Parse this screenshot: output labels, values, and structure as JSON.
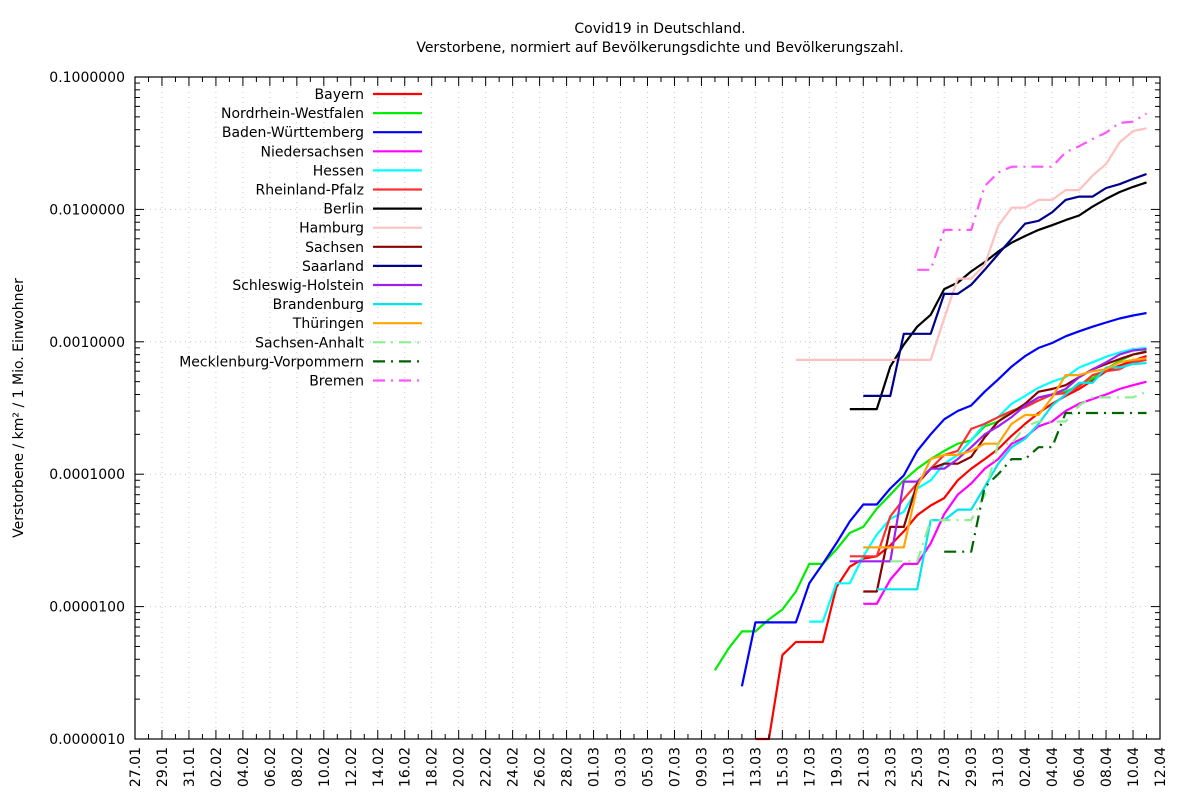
{
  "chart_data": {
    "type": "line",
    "title": "Covid19 in Deutschland.",
    "subtitle": "Verstorbene, normiert auf Bevölkerungsdichte und Bevölkerungszahl.",
    "xlabel": "",
    "ylabel": "Verstorbene / km² / 1 Mio. Einwohner",
    "yscale": "log",
    "ylim": [
      1e-06,
      0.1
    ],
    "y_tick_labels": [
      "0.1000000",
      "0.0100000",
      "0.0010000",
      "0.0001000",
      "0.0000100",
      "0.0000010"
    ],
    "y_tick_values": [
      0.1,
      0.01,
      0.001,
      0.0001,
      1e-05,
      1e-06
    ],
    "x_start_date": "2020-01-27",
    "x_range_days": [
      0,
      76
    ],
    "x_tick_labels": [
      "27.01",
      "29.01",
      "31.01",
      "02.02",
      "04.02",
      "06.02",
      "08.02",
      "10.02",
      "12.02",
      "14.02",
      "16.02",
      "18.02",
      "20.02",
      "22.02",
      "24.02",
      "26.02",
      "28.02",
      "01.03",
      "03.03",
      "05.03",
      "07.03",
      "09.03",
      "11.03",
      "13.03",
      "15.03",
      "17.03",
      "19.03",
      "21.03",
      "23.03",
      "25.03",
      "27.03",
      "29.03",
      "31.03",
      "02.04",
      "04.04",
      "06.04",
      "08.04",
      "10.04",
      "12.04"
    ],
    "grid": true,
    "legend_position": "top-left",
    "series": [
      {
        "name": "Bayern",
        "color": "#ff0000",
        "dash": "solid",
        "x": [
          46,
          47,
          48,
          49,
          50,
          51,
          52,
          53,
          54,
          55,
          56,
          57,
          58,
          59,
          60,
          61,
          62,
          63,
          64,
          65,
          66,
          67,
          68,
          69,
          70,
          71,
          72,
          73,
          74,
          75
        ],
        "y": [
          1e-06,
          1e-06,
          4.3e-06,
          5.4e-06,
          5.4e-06,
          5.4e-06,
          1.4e-05,
          2e-05,
          2.3e-05,
          2.4e-05,
          2.9e-05,
          3.7e-05,
          4.9e-05,
          5.8e-05,
          6.6e-05,
          9e-05,
          0.00011,
          0.00013,
          0.000155,
          0.000195,
          0.00024,
          0.00029,
          0.00034,
          0.00039,
          0.00044,
          0.00051,
          0.0006,
          0.00066,
          0.00072,
          0.00078
        ]
      },
      {
        "name": "Nordrhein-Westfalen",
        "color": "#00ee00",
        "dash": "solid",
        "x": [
          43,
          44,
          45,
          46,
          47,
          48,
          49,
          50,
          51,
          52,
          53,
          54,
          55,
          56,
          57,
          58,
          59,
          60,
          61,
          62,
          63,
          64,
          65,
          66,
          67,
          68,
          69,
          70,
          71,
          72,
          73,
          74,
          75
        ],
        "y": [
          3.3e-06,
          4.8e-06,
          6.5e-06,
          6.5e-06,
          8e-06,
          9.5e-06,
          1.3e-05,
          2.1e-05,
          2.1e-05,
          2.7e-05,
          3.6e-05,
          4e-05,
          5.5e-05,
          7e-05,
          9e-05,
          0.00011,
          0.00013,
          0.00015,
          0.00017,
          0.00018,
          0.00023,
          0.00025,
          0.0003,
          0.00033,
          0.00036,
          0.0004,
          0.00042,
          0.00047,
          0.00053,
          0.00062,
          0.00072,
          0.0008,
          0.00085
        ]
      },
      {
        "name": "Baden-Württemberg",
        "color": "#0000ff",
        "dash": "solid",
        "x": [
          45,
          46,
          47,
          48,
          49,
          50,
          51,
          52,
          53,
          54,
          55,
          56,
          57,
          58,
          59,
          60,
          61,
          62,
          63,
          64,
          65,
          66,
          67,
          68,
          69,
          70,
          71,
          72,
          73,
          74,
          75
        ],
        "y": [
          2.5e-06,
          7.6e-06,
          7.6e-06,
          7.6e-06,
          7.6e-06,
          1.5e-05,
          2.1e-05,
          3e-05,
          4.4e-05,
          5.9e-05,
          5.9e-05,
          7.8e-05,
          9.8e-05,
          0.00015,
          0.0002,
          0.00026,
          0.0003,
          0.00033,
          0.00042,
          0.00052,
          0.00065,
          0.00078,
          0.0009,
          0.00098,
          0.0011,
          0.0012,
          0.0013,
          0.0014,
          0.0015,
          0.00158,
          0.00165
        ]
      },
      {
        "name": "Niedersachsen",
        "color": "#ff00ff",
        "dash": "solid",
        "x": [
          54,
          55,
          56,
          57,
          58,
          59,
          60,
          61,
          62,
          63,
          64,
          65,
          66,
          67,
          68,
          69,
          70,
          71,
          72,
          73,
          74,
          75
        ],
        "y": [
          1.05e-05,
          1.05e-05,
          1.6e-05,
          2.1e-05,
          2.1e-05,
          3e-05,
          5e-05,
          7e-05,
          8.5e-05,
          0.00011,
          0.00013,
          0.00017,
          0.00019,
          0.00023,
          0.00025,
          0.0003,
          0.00034,
          0.00037,
          0.0004,
          0.00044,
          0.00047,
          0.0005
        ]
      },
      {
        "name": "Hessen",
        "color": "#00ffff",
        "dash": "solid",
        "x": [
          50,
          51,
          52,
          53,
          54,
          55,
          56,
          57,
          58,
          59,
          60,
          61,
          62,
          63,
          64,
          65,
          66,
          67,
          68,
          69,
          70,
          71,
          72,
          73,
          74,
          75
        ],
        "y": [
          7.7e-06,
          7.7e-06,
          1.5e-05,
          1.5e-05,
          2.4e-05,
          3.5e-05,
          4.6e-05,
          5.2e-05,
          7.8e-05,
          9e-05,
          0.00012,
          0.00014,
          0.00018,
          0.00024,
          0.00027,
          0.00034,
          0.00039,
          0.00045,
          0.0005,
          0.00054,
          0.00064,
          0.0007,
          0.00077,
          0.00083,
          0.00088,
          0.0009
        ]
      },
      {
        "name": "Rheinland-Pfalz",
        "color": "#ff3030",
        "dash": "solid",
        "x": [
          53,
          54,
          55,
          56,
          57,
          58,
          59,
          60,
          61,
          62,
          63,
          64,
          65,
          66,
          67,
          68,
          69,
          70,
          71,
          72,
          73,
          74,
          75
        ],
        "y": [
          2.4e-05,
          2.4e-05,
          2.4e-05,
          4.8e-05,
          6.5e-05,
          8.5e-05,
          0.00011,
          0.00014,
          0.00015,
          0.00022,
          0.00024,
          0.00027,
          0.0003,
          0.00032,
          0.00036,
          0.0004,
          0.00041,
          0.00046,
          0.00056,
          0.0006,
          0.00062,
          0.0007,
          0.00073
        ]
      },
      {
        "name": "Berlin",
        "color": "#000000",
        "dash": "solid",
        "x": [
          53,
          54,
          55,
          56,
          57,
          58,
          59,
          60,
          61,
          62,
          63,
          64,
          65,
          66,
          67,
          68,
          69,
          70,
          71,
          72,
          73,
          74,
          75
        ],
        "y": [
          0.00031,
          0.00031,
          0.00031,
          0.00065,
          0.00095,
          0.0013,
          0.0016,
          0.0025,
          0.0028,
          0.0034,
          0.004,
          0.0048,
          0.0056,
          0.0063,
          0.007,
          0.0076,
          0.0083,
          0.009,
          0.0105,
          0.012,
          0.0135,
          0.0148,
          0.016
        ]
      },
      {
        "name": "Hamburg",
        "color": "#ffc0c0",
        "dash": "solid",
        "x": [
          49,
          50,
          51,
          52,
          53,
          54,
          55,
          56,
          57,
          58,
          59,
          60,
          61,
          62,
          63,
          64,
          65,
          66,
          67,
          68,
          69,
          70,
          71,
          72,
          73,
          74,
          75
        ],
        "y": [
          0.00073,
          0.00073,
          0.00073,
          0.00073,
          0.00073,
          0.00073,
          0.00073,
          0.00073,
          0.00073,
          0.00073,
          0.00073,
          0.0015,
          0.003,
          0.003,
          0.0038,
          0.0075,
          0.0103,
          0.0103,
          0.0118,
          0.0118,
          0.014,
          0.014,
          0.018,
          0.022,
          0.032,
          0.039,
          0.041
        ]
      },
      {
        "name": "Sachsen",
        "color": "#8b0000",
        "dash": "solid",
        "x": [
          54,
          55,
          56,
          57,
          58,
          59,
          60,
          61,
          62,
          63,
          64,
          65,
          66,
          67,
          68,
          69,
          70,
          71,
          72,
          73,
          74,
          75
        ],
        "y": [
          1.3e-05,
          1.3e-05,
          4e-05,
          4e-05,
          8.5e-05,
          0.00011,
          0.00012,
          0.00012,
          0.000135,
          0.00019,
          0.00025,
          0.00029,
          0.00034,
          0.00042,
          0.00044,
          0.00047,
          0.00054,
          0.00062,
          0.00068,
          0.00074,
          0.0008,
          0.00084
        ]
      },
      {
        "name": "Saarland",
        "color": "#00008b",
        "dash": "solid",
        "x": [
          54,
          55,
          56,
          57,
          58,
          59,
          60,
          61,
          62,
          63,
          64,
          65,
          66,
          67,
          68,
          69,
          70,
          71,
          72,
          73,
          74,
          75
        ],
        "y": [
          0.00039,
          0.00039,
          0.00039,
          0.00115,
          0.00115,
          0.00115,
          0.0023,
          0.0023,
          0.0027,
          0.0035,
          0.0046,
          0.006,
          0.0078,
          0.0082,
          0.0095,
          0.0118,
          0.0125,
          0.0125,
          0.0145,
          0.0155,
          0.017,
          0.0185
        ]
      },
      {
        "name": "Schleswig-Holstein",
        "color": "#a020f0",
        "dash": "solid",
        "x": [
          53,
          54,
          55,
          56,
          57,
          58,
          59,
          60,
          61,
          62,
          63,
          64,
          65,
          66,
          67,
          68,
          69,
          70,
          71,
          72,
          73,
          74,
          75
        ],
        "y": [
          2.2e-05,
          2.2e-05,
          2.2e-05,
          2.2e-05,
          8.8e-05,
          8.8e-05,
          0.00011,
          0.00011,
          0.00013,
          0.00016,
          0.0002,
          0.00023,
          0.00027,
          0.00033,
          0.00038,
          0.0004,
          0.00044,
          0.00054,
          0.00062,
          0.0007,
          0.0008,
          0.00086,
          0.00088
        ]
      },
      {
        "name": "Brandenburg",
        "color": "#00e5ee",
        "dash": "solid",
        "x": [
          55,
          56,
          57,
          58,
          59,
          60,
          61,
          62,
          63,
          64,
          65,
          66,
          67,
          68,
          69,
          70,
          71,
          72,
          73,
          74,
          75
        ],
        "y": [
          1.35e-05,
          1.35e-05,
          1.35e-05,
          1.35e-05,
          4.5e-05,
          4.5e-05,
          5.4e-05,
          5.4e-05,
          8e-05,
          0.00012,
          0.00016,
          0.000185,
          0.00024,
          0.00033,
          0.0004,
          0.00049,
          0.00049,
          0.00064,
          0.00064,
          0.00068,
          0.00069
        ]
      },
      {
        "name": "Thüringen",
        "color": "#ffa500",
        "dash": "solid",
        "x": [
          54,
          55,
          56,
          57,
          58,
          59,
          60,
          61,
          62,
          63,
          64,
          65,
          66,
          67,
          68,
          69,
          70,
          71,
          72,
          73,
          74,
          75
        ],
        "y": [
          2.8e-05,
          2.8e-05,
          2.8e-05,
          2.8e-05,
          8e-05,
          0.00013,
          0.00014,
          0.00014,
          0.00015,
          0.00017,
          0.00017,
          0.00024,
          0.00028,
          0.00028,
          0.00038,
          0.00056,
          0.00056,
          0.0006,
          0.00062,
          0.0007,
          0.00073,
          0.00075
        ]
      },
      {
        "name": "Sachsen-Anhalt",
        "color": "#90ee90",
        "dash": "dash-dot",
        "x": [
          56,
          57,
          58,
          59,
          60,
          61,
          62,
          63,
          64,
          65,
          66,
          67,
          68,
          69,
          70,
          71,
          72,
          73,
          74,
          75
        ],
        "y": [
          2.2e-05,
          2.2e-05,
          2.2e-05,
          4.5e-05,
          4.5e-05,
          4.5e-05,
          4.5e-05,
          7e-05,
          0.00017,
          0.00017,
          0.00023,
          0.00025,
          0.00025,
          0.00025,
          0.00033,
          0.00038,
          0.00038,
          0.00038,
          0.00038,
          0.00042
        ]
      },
      {
        "name": "Mecklenburg-Vorpommern",
        "color": "#006400",
        "dash": "dash-dot",
        "x": [
          60,
          61,
          62,
          63,
          64,
          65,
          66,
          67,
          68,
          69,
          70,
          71,
          72,
          73,
          74,
          75
        ],
        "y": [
          2.6e-05,
          2.6e-05,
          2.6e-05,
          8e-05,
          0.0001,
          0.00013,
          0.00013,
          0.00016,
          0.00016,
          0.00029,
          0.00029,
          0.00029,
          0.00029,
          0.00029,
          0.00029,
          0.00029
        ]
      },
      {
        "name": "Bremen",
        "color": "#ff55ff",
        "dash": "dash-dot",
        "x": [
          58,
          59,
          60,
          61,
          62,
          63,
          64,
          65,
          66,
          67,
          68,
          69,
          70,
          71,
          72,
          73,
          74,
          75
        ],
        "y": [
          0.0035,
          0.0035,
          0.007,
          0.007,
          0.007,
          0.015,
          0.019,
          0.021,
          0.021,
          0.021,
          0.021,
          0.027,
          0.03,
          0.034,
          0.038,
          0.045,
          0.046,
          0.053
        ]
      }
    ]
  }
}
